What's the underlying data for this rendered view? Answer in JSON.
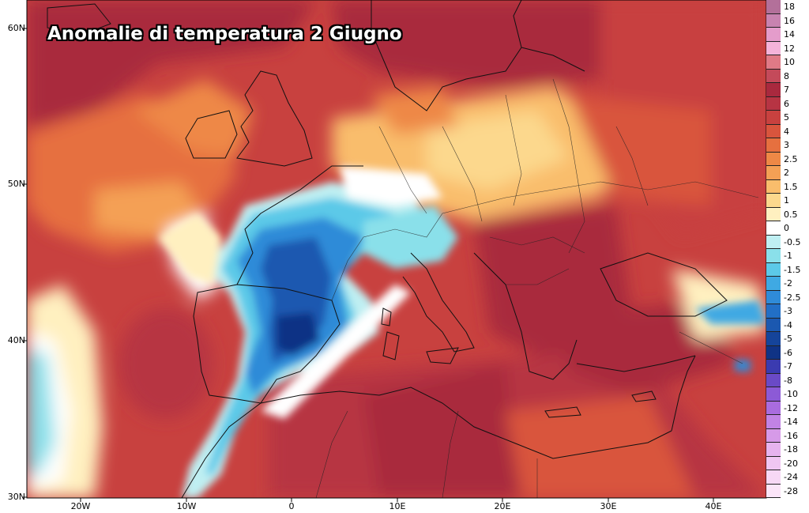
{
  "title": "Anomalie di temperatura 2 Giugno",
  "lat_labels": [
    "60N",
    "50N",
    "40N",
    "30N"
  ],
  "lon_labels": [
    "20W",
    "10W",
    "0",
    "10E",
    "20E",
    "30E",
    "40E"
  ],
  "legend": [
    {
      "label": "18",
      "color": "#b3709a"
    },
    {
      "label": "16",
      "color": "#c883b0"
    },
    {
      "label": "14",
      "color": "#e49ccb"
    },
    {
      "label": "12",
      "color": "#f5b3d9"
    },
    {
      "label": "10",
      "color": "#e07a86"
    },
    {
      "label": "8",
      "color": "#c44a5a"
    },
    {
      "label": "7",
      "color": "#a9293e"
    },
    {
      "label": "6",
      "color": "#b73443"
    },
    {
      "label": "5",
      "color": "#c8413f"
    },
    {
      "label": "4",
      "color": "#d9553d"
    },
    {
      "label": "3",
      "color": "#e6703f"
    },
    {
      "label": "2.5",
      "color": "#ee8846"
    },
    {
      "label": "2",
      "color": "#f4a055"
    },
    {
      "label": "1.5",
      "color": "#f9bd6c"
    },
    {
      "label": "1",
      "color": "#fcd88d"
    },
    {
      "label": "0.5",
      "color": "#fff0c0"
    },
    {
      "label": "0",
      "color": "#ffffff"
    },
    {
      "label": "-0.5",
      "color": "#bfeff2"
    },
    {
      "label": "-1",
      "color": "#8ae0ea"
    },
    {
      "label": "-1.5",
      "color": "#5cc9e8"
    },
    {
      "label": "-2",
      "color": "#3fa9e3"
    },
    {
      "label": "-2.5",
      "color": "#2f8bd8"
    },
    {
      "label": "-3",
      "color": "#226fc6"
    },
    {
      "label": "-4",
      "color": "#1b58b0"
    },
    {
      "label": "-5",
      "color": "#15449a"
    },
    {
      "label": "-6",
      "color": "#103385"
    },
    {
      "label": "-7",
      "color": "#3b3bb0"
    },
    {
      "label": "-8",
      "color": "#6a4ac6"
    },
    {
      "label": "-10",
      "color": "#8c5ad6"
    },
    {
      "label": "-12",
      "color": "#a96cde"
    },
    {
      "label": "-14",
      "color": "#c183e4"
    },
    {
      "label": "-16",
      "color": "#d69ae8"
    },
    {
      "label": "-18",
      "color": "#e6b3ee"
    },
    {
      "label": "-20",
      "color": "#f0c6f2"
    },
    {
      "label": "-24",
      "color": "#f7d8f5"
    },
    {
      "label": "-28",
      "color": "#fbe5f8"
    }
  ],
  "colors": {
    "warm_dark": "#b73443",
    "warm_mid": "#d9553d",
    "warm_light": "#f4a055",
    "cold_dark": "#15449a",
    "cold_mid": "#3fa9e3",
    "cold_light": "#bfeff2",
    "neutral": "#ffffff"
  }
}
